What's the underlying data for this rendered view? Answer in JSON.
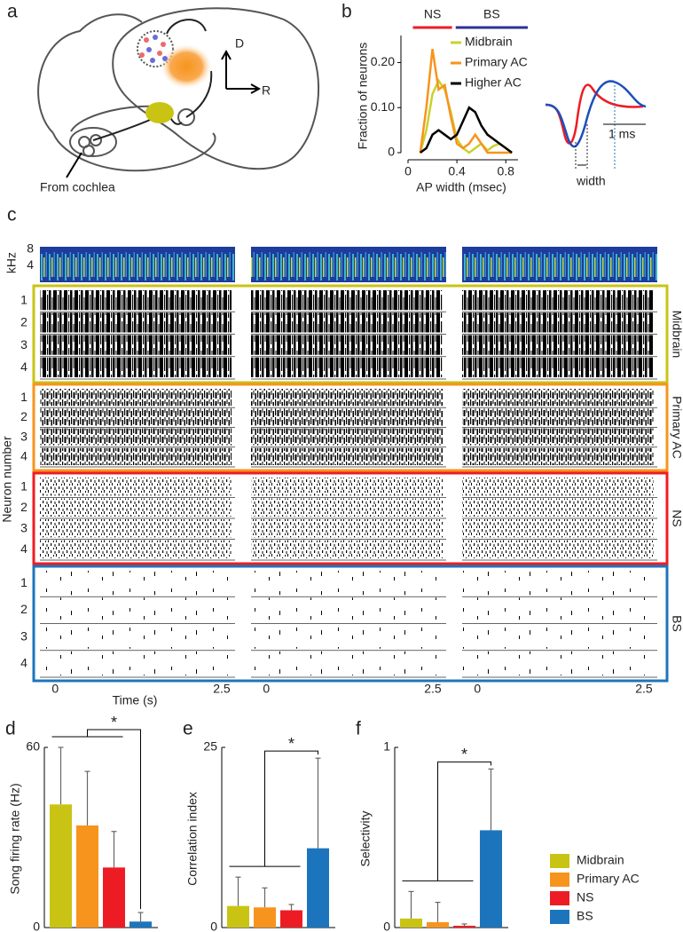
{
  "diagram": {
    "panel_label": "a",
    "dorsal": "D",
    "rostral": "R",
    "input": "From cochlea"
  },
  "chart_data": [
    {
      "type": "line",
      "panel_label": "b",
      "ylabel": "Fraction of neurons",
      "xlabel": "AP width (msec)",
      "x": [
        0.1,
        0.15,
        0.2,
        0.25,
        0.3,
        0.35,
        0.4,
        0.45,
        0.5,
        0.55,
        0.6,
        0.65,
        0.7,
        0.75,
        0.8,
        0.85
      ],
      "series": [
        {
          "name": "Midbrain",
          "color": "#c8d22c",
          "values": [
            0,
            0.05,
            0.13,
            0.16,
            0.14,
            0.09,
            0.03,
            0.01,
            0,
            0.01,
            0.02,
            0.005,
            0.015,
            0.02,
            0.01,
            0
          ]
        },
        {
          "name": "Primary AC",
          "color": "#f7941d",
          "values": [
            0,
            0.1,
            0.23,
            0.14,
            0.15,
            0.08,
            0.02,
            0.01,
            0.02,
            0.04,
            0.02,
            0,
            0,
            0,
            0,
            0
          ]
        },
        {
          "name": "Higher AC",
          "color": "#000000",
          "values": [
            0,
            0.01,
            0.04,
            0.05,
            0.04,
            0.03,
            0.04,
            0.07,
            0.1,
            0.09,
            0.06,
            0.04,
            0.03,
            0.02,
            0.01,
            0
          ]
        }
      ],
      "xlim": [
        0,
        0.9
      ],
      "xticks": [
        0,
        0.4,
        0.8
      ],
      "ylim": [
        0,
        0.26
      ],
      "yticks": [
        0,
        {
          "value": 0.1,
          "label": "0.10"
        },
        {
          "value": 0.2,
          "label": "0.20"
        }
      ],
      "bands": [
        {
          "label": "NS",
          "color": "#ed1c24",
          "range": [
            0.04,
            0.36
          ]
        },
        {
          "label": "BS",
          "color": "#2e3192",
          "range": [
            0.39,
            0.98
          ]
        }
      ],
      "inset_labels": {
        "scale": "1 ms",
        "measure": "width"
      }
    },
    {
      "type": "raster",
      "panel_label": "c",
      "ylabel": "Neuron number",
      "xlabel": "Time (s)",
      "xlim": [
        -0.23,
        2.7
      ],
      "xticks": [
        0,
        2.5
      ],
      "spec_label": "kHz",
      "spec_ylim": [
        0,
        8.6
      ],
      "spec_yticks": [
        8,
        4
      ],
      "neuron_labels": [
        1,
        2,
        3,
        4
      ],
      "groups": [
        {
          "name": "Midbrain",
          "color": "#c9c414"
        },
        {
          "name": "Primary AC",
          "color": "#f7941d"
        },
        {
          "name": "NS",
          "color": "#ed1c24"
        },
        {
          "name": "BS",
          "color": "#1c75bc"
        }
      ]
    },
    {
      "type": "bar",
      "panel_label": "d",
      "ylabel": "Song firing rate (Hz)",
      "categories": [
        null,
        null,
        null,
        null
      ],
      "values": [
        41,
        34,
        20,
        2
      ],
      "errors": [
        19,
        18,
        12,
        3
      ],
      "ylim": [
        0,
        60
      ],
      "yticks": [
        0,
        60
      ],
      "significance": "*"
    },
    {
      "type": "bar",
      "panel_label": "e",
      "ylabel": "Correlation index",
      "categories": [
        null,
        null,
        null,
        null
      ],
      "values": [
        3,
        2.8,
        2.4,
        11
      ],
      "errors": [
        4,
        2.7,
        0.8,
        12.5
      ],
      "ylim": [
        0,
        25
      ],
      "yticks": [
        0,
        25
      ],
      "significance": "*"
    },
    {
      "type": "bar",
      "panel_label": "f",
      "ylabel": "Selectivity",
      "categories": [
        null,
        null,
        null,
        null
      ],
      "values": [
        0.05,
        0.03,
        0.01,
        0.54
      ],
      "errors": [
        0.15,
        0.11,
        0.01,
        0.34
      ],
      "ylim": [
        0,
        1
      ],
      "yticks": [
        0,
        1
      ],
      "significance": "*"
    }
  ],
  "legend": {
    "items": [
      {
        "name": "Midbrain",
        "color": "#c9c414"
      },
      {
        "name": "Primary AC",
        "color": "#f7941d"
      },
      {
        "name": "NS",
        "color": "#ed1c24"
      },
      {
        "name": "BS",
        "color": "#1c75bc"
      }
    ]
  }
}
